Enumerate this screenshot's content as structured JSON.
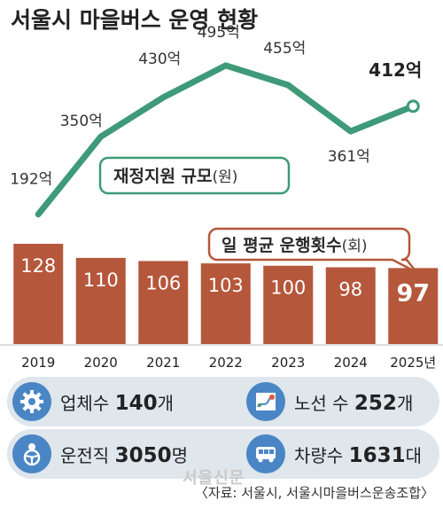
{
  "title": "서울시 마을버스 운영 현황",
  "chart_data": {
    "type": "bar+line",
    "categories": [
      "2019",
      "2020",
      "2021",
      "2022",
      "2023",
      "2024",
      "2025년"
    ],
    "series": [
      {
        "name": "재정지원 규모",
        "unit_label": "(원)",
        "type": "line",
        "values": [
          192,
          350,
          430,
          495,
          455,
          361,
          412
        ],
        "labels": [
          "192억",
          "350억",
          "430억",
          "495억",
          "455억",
          "361억",
          "412억"
        ],
        "color": "#3e9a78"
      },
      {
        "name": "일 평균 운행횟수",
        "unit_label": "(회)",
        "type": "bar",
        "values": [
          128,
          110,
          106,
          103,
          100,
          98,
          97
        ],
        "color": "#b5573b"
      }
    ],
    "bar_ylim": [
      0,
      140
    ],
    "line_ylim": [
      150,
      520
    ],
    "grid": false,
    "legend": "callouts"
  },
  "stats": {
    "companies": {
      "label": "업체수 ",
      "value": "140",
      "unit": "개",
      "icon": "gear-icon"
    },
    "routes": {
      "label": "노선 수 ",
      "value": "252",
      "unit": "개",
      "icon": "route-map-icon"
    },
    "drivers": {
      "label": "운전직 ",
      "value": "3050",
      "unit": "명",
      "icon": "driver-steering-icon"
    },
    "vehicles": {
      "label": "차량수 ",
      "value": "1631",
      "unit": "대",
      "icon": "bus-icon"
    }
  },
  "watermark": "서울신문",
  "source": "〈자료: 서울시, 서울시마을버스운송조합〉"
}
